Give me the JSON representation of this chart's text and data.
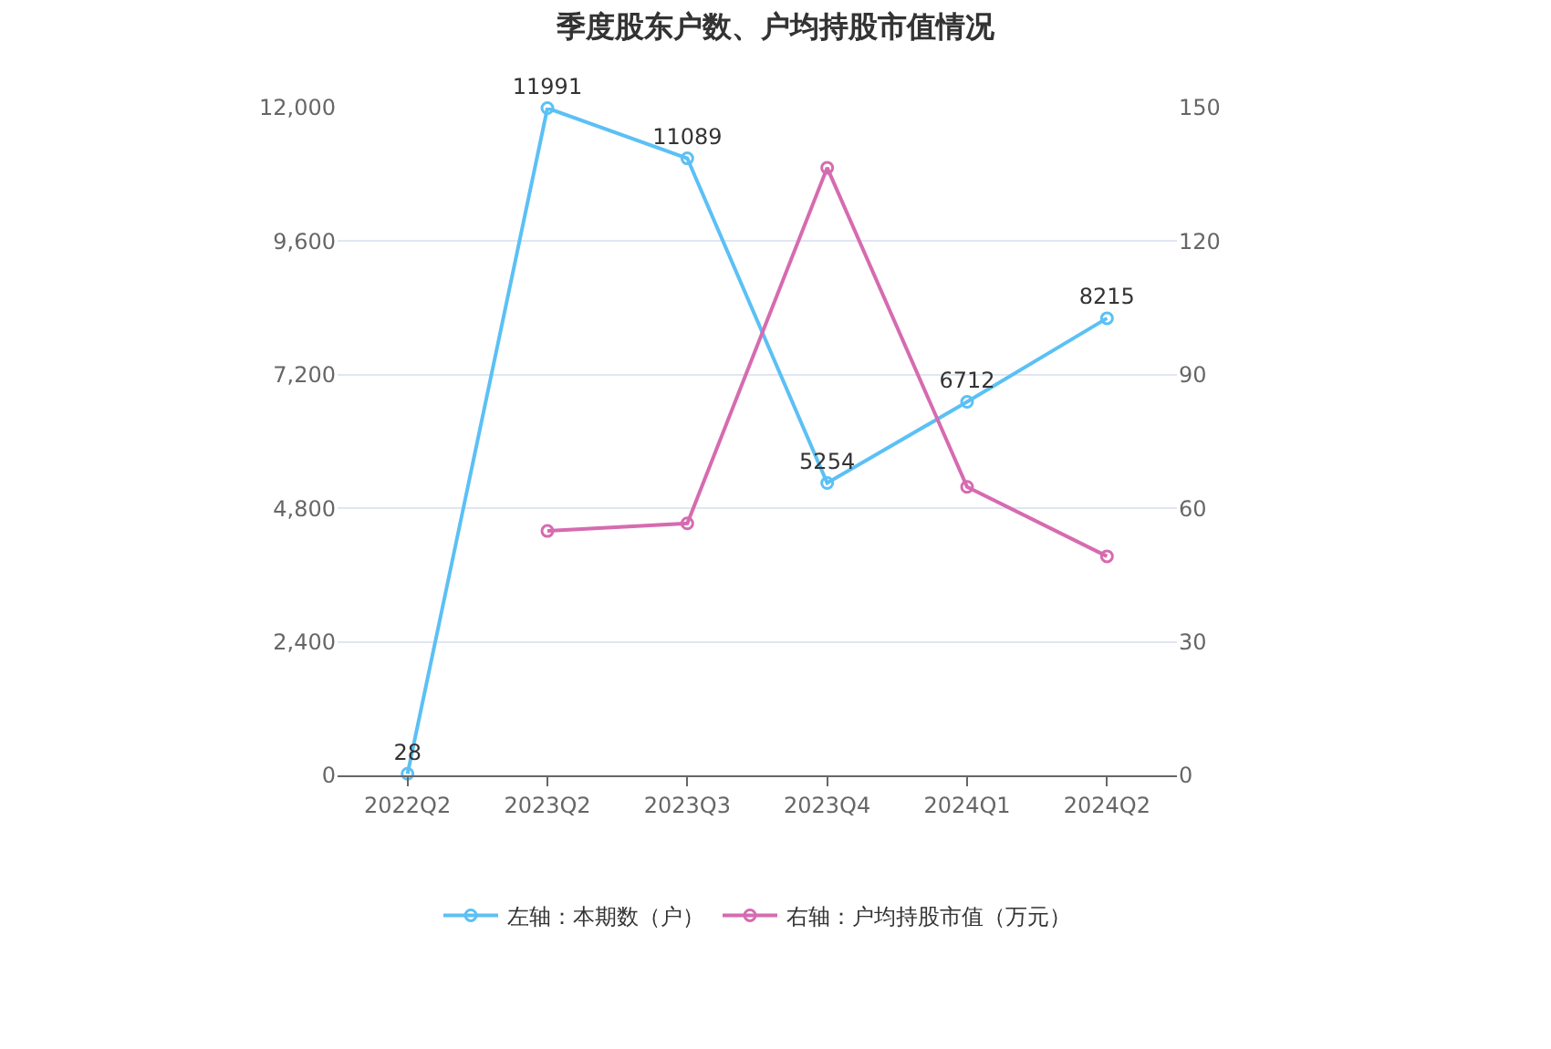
{
  "chart_data": {
    "type": "line",
    "title": "季度股东户数、户均持股市值情况",
    "categories": [
      "2022Q2",
      "2023Q2",
      "2023Q3",
      "2023Q4",
      "2024Q1",
      "2024Q2"
    ],
    "series": [
      {
        "name": "左轴：本期数（户）",
        "color": "#5bc0f5",
        "values": [
          28,
          11991,
          11089,
          5254,
          6712,
          8215
        ],
        "data_labels": true
      },
      {
        "name": "右轴：户均持股市值（万元）",
        "color": "#d66bb0",
        "axis": "y2",
        "values": [
          null,
          54.9,
          56.6,
          136.5,
          64.8,
          49.2
        ]
      }
    ],
    "ylim": [
      0,
      12000
    ],
    "yticks": [
      {
        "value": 0,
        "label": "0"
      },
      {
        "value": 2400,
        "label": "2,400"
      },
      {
        "value": 4800,
        "label": "4,800"
      },
      {
        "value": 7200,
        "label": "7,200"
      },
      {
        "value": 9600,
        "label": "9,600"
      },
      {
        "value": 12000,
        "label": "12,000"
      }
    ],
    "y2lim": [
      0,
      150
    ],
    "y2ticks": [
      0,
      30,
      60,
      90,
      120,
      150
    ],
    "grid": "y",
    "legend": "bottom",
    "marker": "circle",
    "line_style": "solid"
  }
}
